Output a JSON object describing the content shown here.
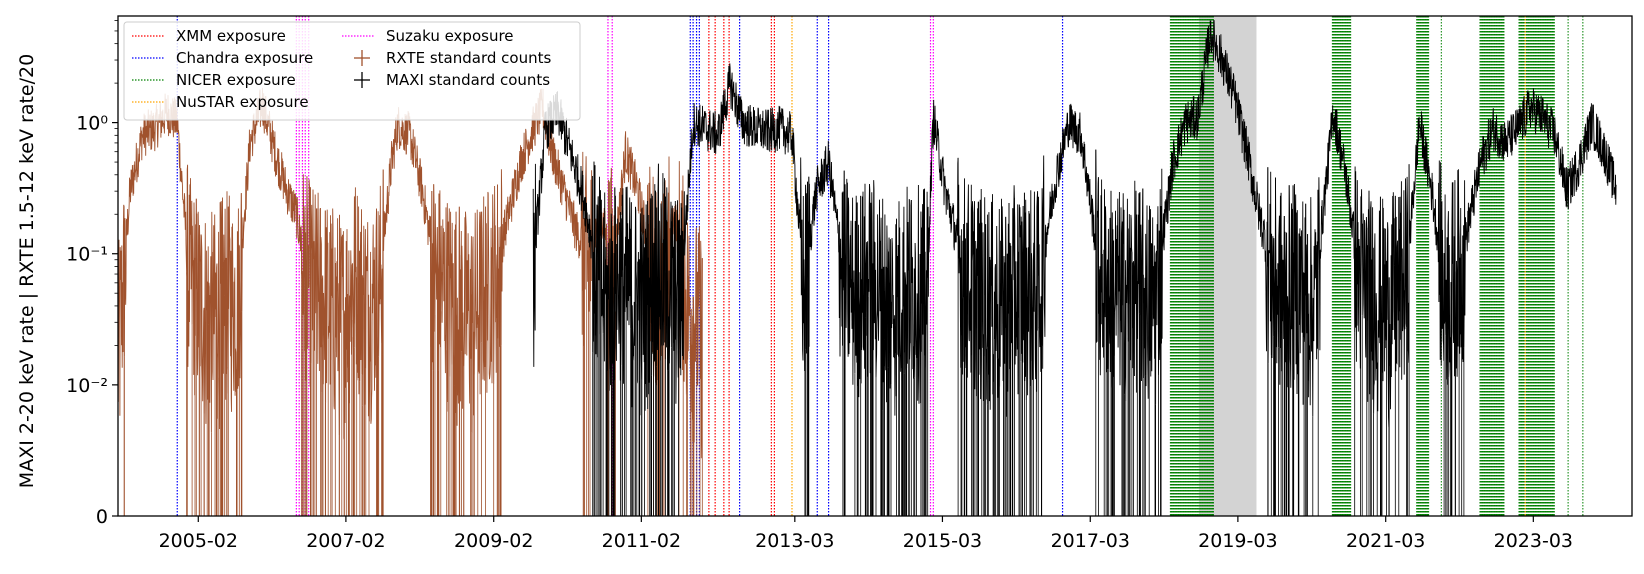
{
  "chart_data": {
    "type": "line",
    "title": "",
    "xlabel": "",
    "ylabel": "MAXI 2-20 keV rate | RXTE 1.5-12 keV rate/20",
    "y_scale": "symlog",
    "ylim": [
      0,
      6.5
    ],
    "xlim": [
      "2004-01-01",
      "2024-07-01"
    ],
    "x_ticks": [
      {
        "date": "2005-02-01",
        "label": "2005-02"
      },
      {
        "date": "2007-02-01",
        "label": "2007-02"
      },
      {
        "date": "2009-02-01",
        "label": "2009-02"
      },
      {
        "date": "2011-02-01",
        "label": "2011-02"
      },
      {
        "date": "2013-03-01",
        "label": "2013-03"
      },
      {
        "date": "2015-03-01",
        "label": "2015-03"
      },
      {
        "date": "2017-03-01",
        "label": "2017-03"
      },
      {
        "date": "2019-03-01",
        "label": "2019-03"
      },
      {
        "date": "2021-03-01",
        "label": "2021-03"
      },
      {
        "date": "2023-03-01",
        "label": "2023-03"
      }
    ],
    "y_ticks": [
      {
        "value": 0,
        "label": "0"
      },
      {
        "value": 0.01,
        "label": "10⁻²"
      },
      {
        "value": 0.1,
        "label": "10⁻¹"
      },
      {
        "value": 1,
        "label": "10⁰"
      }
    ],
    "legend": {
      "placement": "top-left",
      "entries": [
        {
          "label": "XMM exposure",
          "key": "xmm"
        },
        {
          "label": "Chandra exposure",
          "key": "chandra"
        },
        {
          "label": "NICER exposure",
          "key": "nicer"
        },
        {
          "label": "NuSTAR exposure",
          "key": "nustar"
        },
        {
          "label": "Suzaku exposure",
          "key": "suzaku"
        },
        {
          "label": "RXTE standard counts",
          "key": "rxte"
        },
        {
          "label": "MAXI standard counts",
          "key": "maxi"
        }
      ]
    },
    "colors": {
      "xmm": "#ff0000",
      "chandra": "#0000ff",
      "nicer": "#008000",
      "nustar": "#ffa500",
      "suzaku": "#ff00ff",
      "rxte": "#a0522d",
      "maxi": "#000000",
      "shade": "#d3d3d3"
    },
    "shaded_span": [
      "2018-08-20",
      "2019-06-01"
    ],
    "exposures": {
      "xmm": [
        "2012-01-01",
        "2012-02-01",
        "2012-03-15",
        "2012-04-10",
        "2012-11-05",
        "2012-11-20"
      ],
      "chandra": [
        "2004-10-20",
        "2011-10-01",
        "2011-10-15",
        "2011-11-01",
        "2011-11-15",
        "2012-06-01",
        "2013-06-20",
        "2013-08-15",
        "2016-10-15"
      ],
      "nustar": [
        "2013-02-15",
        "2023-01-20"
      ],
      "suzaku": [
        "2006-06-01",
        "2006-06-15",
        "2006-07-01",
        "2006-07-15",
        "2006-08-01",
        "2010-08-20",
        "2010-09-10",
        "2015-01-01",
        "2015-01-15"
      ],
      "nicer_dense": [
        [
          "2018-04-01",
          "2018-11-01"
        ],
        [
          "2020-06-10",
          "2020-09-10"
        ],
        [
          "2021-08-01",
          "2021-10-01"
        ],
        [
          "2022-06-10",
          "2022-10-10"
        ],
        [
          "2022-12-20",
          "2023-06-15"
        ]
      ],
      "nicer_single": [
        "2018-07-20",
        "2021-12-01",
        "2023-08-20",
        "2023-11-01"
      ]
    },
    "series": [
      {
        "name": "RXTE standard counts",
        "key": "rxte",
        "x": [
          "2004-01-01",
          "2004-03-01",
          "2004-05-01",
          "2004-07-01",
          "2004-09-01",
          "2004-10-20",
          "2004-12-15",
          "2005-02-15",
          "2005-04-15",
          "2005-06-15",
          "2005-08-15",
          "2005-10-15",
          "2005-12-15",
          "2006-02-15",
          "2006-04-15",
          "2006-06-01",
          "2006-07-15",
          "2006-09-15",
          "2006-11-15",
          "2007-01-15",
          "2007-03-15",
          "2007-05-15",
          "2007-07-15",
          "2007-09-15",
          "2007-10-15",
          "2007-12-15",
          "2008-02-15",
          "2008-04-15",
          "2008-06-15",
          "2008-08-15",
          "2008-10-15",
          "2008-12-15",
          "2009-02-15",
          "2009-04-15",
          "2009-06-15",
          "2009-08-15",
          "2009-10-01",
          "2009-11-15",
          "2010-01-15",
          "2010-03-15",
          "2010-05-15",
          "2010-07-15",
          "2010-09-15",
          "2010-11-15",
          "2011-01-15",
          "2011-03-15",
          "2011-05-15",
          "2011-07-15",
          "2011-09-15",
          "2011-12-01"
        ],
        "y": [
          0.02,
          0.3,
          0.8,
          0.9,
          1.2,
          1.0,
          0.08,
          0.05,
          0.04,
          0.06,
          0.05,
          0.7,
          1.4,
          0.6,
          0.3,
          0.2,
          0.08,
          0.06,
          0.05,
          0.04,
          0.08,
          0.05,
          0.06,
          0.5,
          0.95,
          0.8,
          0.3,
          0.08,
          0.06,
          0.05,
          0.04,
          0.06,
          0.08,
          0.2,
          0.5,
          0.9,
          1.3,
          0.6,
          0.3,
          0.15,
          0.1,
          0.2,
          0.08,
          0.6,
          0.3,
          0.1,
          0.06,
          0.2,
          0.05,
          0.03
        ]
      },
      {
        "name": "MAXI standard counts",
        "key": "maxi",
        "x": [
          "2009-08-15",
          "2009-10-15",
          "2009-12-15",
          "2010-02-15",
          "2010-04-15",
          "2010-06-15",
          "2010-08-15",
          "2010-10-15",
          "2010-12-15",
          "2011-02-15",
          "2011-04-15",
          "2011-06-15",
          "2011-08-15",
          "2011-10-15",
          "2011-12-15",
          "2012-02-15",
          "2012-04-15",
          "2012-06-15",
          "2012-08-15",
          "2012-10-15",
          "2012-12-15",
          "2013-02-15",
          "2013-04-15",
          "2013-06-15",
          "2013-08-15",
          "2013-10-15",
          "2013-12-15",
          "2014-03-15",
          "2014-06-15",
          "2014-09-15",
          "2014-12-15",
          "2015-01-15",
          "2015-03-15",
          "2015-06-15",
          "2015-09-15",
          "2015-12-15",
          "2016-03-15",
          "2016-06-15",
          "2016-09-15",
          "2016-11-15",
          "2017-01-15",
          "2017-04-15",
          "2017-07-15",
          "2017-10-15",
          "2018-01-15",
          "2018-04-15",
          "2018-06-15",
          "2018-08-15",
          "2018-10-15",
          "2018-12-15",
          "2019-02-15",
          "2019-04-15",
          "2019-06-15",
          "2019-08-15",
          "2019-10-15",
          "2019-12-15",
          "2020-03-15",
          "2020-06-15",
          "2020-08-15",
          "2020-10-15",
          "2020-12-15",
          "2021-03-15",
          "2021-06-15",
          "2021-08-15",
          "2021-10-15",
          "2021-12-15",
          "2022-03-15",
          "2022-06-15",
          "2022-08-15",
          "2022-10-15",
          "2022-12-15",
          "2023-02-15",
          "2023-04-15",
          "2023-06-15",
          "2023-08-15",
          "2023-10-15",
          "2023-12-15",
          "2024-02-15",
          "2024-04-15"
        ],
        "y": [
          0.08,
          0.9,
          1.2,
          0.6,
          0.3,
          0.1,
          0.05,
          0.08,
          0.06,
          0.05,
          0.1,
          0.07,
          0.05,
          1.0,
          0.9,
          0.8,
          2.0,
          1.0,
          0.9,
          0.85,
          0.9,
          0.8,
          0.06,
          0.3,
          0.5,
          0.1,
          0.06,
          0.08,
          0.05,
          0.07,
          0.06,
          1.1,
          0.3,
          0.08,
          0.06,
          0.05,
          0.07,
          0.06,
          0.4,
          1.0,
          0.8,
          0.08,
          0.06,
          0.07,
          0.05,
          0.5,
          1.0,
          1.1,
          5.0,
          3.0,
          1.5,
          0.6,
          0.2,
          0.08,
          0.06,
          0.07,
          0.05,
          1.2,
          0.4,
          0.08,
          0.06,
          0.05,
          0.08,
          1.0,
          0.3,
          0.06,
          0.1,
          0.5,
          0.9,
          0.7,
          0.9,
          1.3,
          1.1,
          0.8,
          0.3,
          0.5,
          1.0,
          0.6,
          0.3
        ]
      }
    ]
  }
}
